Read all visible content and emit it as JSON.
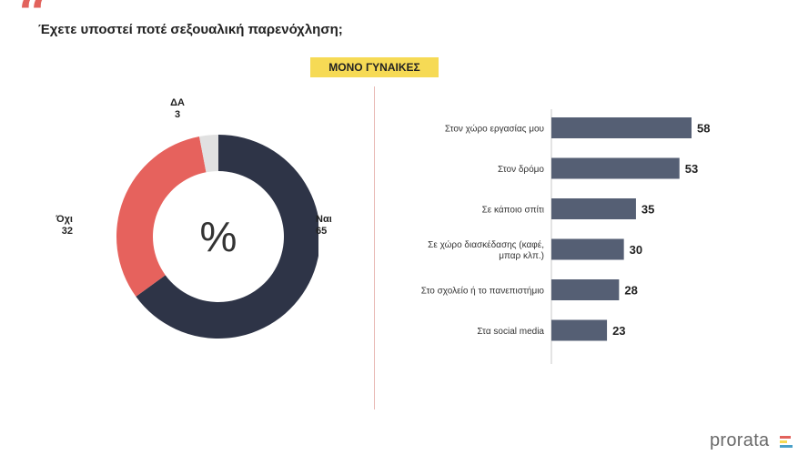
{
  "header": {
    "title": "Έχετε υποστεί ποτέ σεξουαλική παρενόχληση;",
    "badge": "ΜΟΝΟ ΓΥΝΑΙΚΕΣ",
    "quote_color": "#e2625c"
  },
  "donut_center": "%",
  "logo": {
    "text": "prorata",
    "mark_colors": [
      "#e2625c",
      "#f6da55",
      "#4aa0c8"
    ]
  },
  "chart_data": [
    {
      "type": "pie",
      "categories": [
        "Ναι",
        "Όχι",
        "ΔΑ"
      ],
      "values": [
        65,
        32,
        3
      ],
      "colors": [
        "#2e3447",
        "#e6625d",
        "#e1e1e1"
      ]
    },
    {
      "type": "bar",
      "orientation": "horizontal",
      "categories": [
        "Στον χώρο εργασίας μου",
        "Στον δρόμο",
        "Σε κάποιο σπίτι",
        "Σε χώρο διασκέδασης (καφέ, μπαρ κλπ.)",
        "Στο σχολείο ή το πανεπιστήμιο",
        "Στα social media"
      ],
      "values": [
        58,
        53,
        35,
        30,
        28,
        23
      ],
      "color": "#555f74"
    }
  ]
}
